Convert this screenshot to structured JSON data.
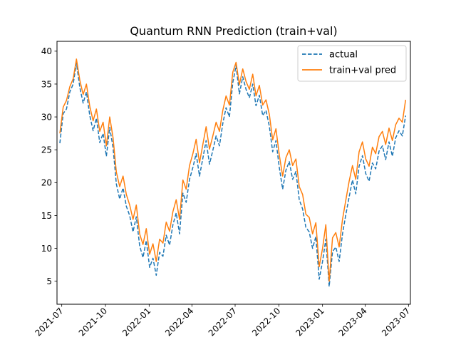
{
  "chart_data": {
    "type": "line",
    "title": "Quantum RNN Prediction (train+val)",
    "xlabel": "",
    "ylabel": "",
    "x_range": [
      "2021-06-21",
      "2023-07-05"
    ],
    "ylim": [
      1.5,
      41.5
    ],
    "x_ticks": [
      "2021-07",
      "2021-10",
      "2022-01",
      "2022-04",
      "2022-07",
      "2022-10",
      "2023-01",
      "2023-04",
      "2023-07"
    ],
    "y_ticks": [
      5,
      10,
      15,
      20,
      25,
      30,
      35,
      40
    ],
    "grid": false,
    "legend_position": "top-right",
    "x": [
      "2021-06-27",
      "2021-07-04",
      "2021-07-11",
      "2021-07-18",
      "2021-07-25",
      "2021-08-01",
      "2021-08-08",
      "2021-08-15",
      "2021-08-22",
      "2021-08-29",
      "2021-09-05",
      "2021-09-12",
      "2021-09-19",
      "2021-09-26",
      "2021-10-03",
      "2021-10-10",
      "2021-10-17",
      "2021-10-24",
      "2021-10-31",
      "2021-11-07",
      "2021-11-14",
      "2021-11-21",
      "2021-11-28",
      "2021-12-05",
      "2021-12-12",
      "2021-12-19",
      "2021-12-26",
      "2022-01-02",
      "2022-01-09",
      "2022-01-16",
      "2022-01-23",
      "2022-01-30",
      "2022-02-06",
      "2022-02-13",
      "2022-02-20",
      "2022-02-27",
      "2022-03-06",
      "2022-03-13",
      "2022-03-20",
      "2022-03-27",
      "2022-04-03",
      "2022-04-10",
      "2022-04-17",
      "2022-04-24",
      "2022-05-01",
      "2022-05-08",
      "2022-05-15",
      "2022-05-22",
      "2022-05-29",
      "2022-06-05",
      "2022-06-12",
      "2022-06-19",
      "2022-06-26",
      "2022-07-03",
      "2022-07-10",
      "2022-07-17",
      "2022-07-24",
      "2022-07-31",
      "2022-08-07",
      "2022-08-14",
      "2022-08-21",
      "2022-08-28",
      "2022-09-04",
      "2022-09-11",
      "2022-09-18",
      "2022-09-25",
      "2022-10-02",
      "2022-10-09",
      "2022-10-16",
      "2022-10-23",
      "2022-10-30",
      "2022-11-06",
      "2022-11-13",
      "2022-11-20",
      "2022-11-27",
      "2022-12-04",
      "2022-12-11",
      "2022-12-18",
      "2022-12-25",
      "2023-01-01",
      "2023-01-08",
      "2023-01-15",
      "2023-01-22",
      "2023-01-29",
      "2023-02-05",
      "2023-02-12",
      "2023-02-19",
      "2023-02-26",
      "2023-03-05",
      "2023-03-12",
      "2023-03-19",
      "2023-03-26",
      "2023-04-02",
      "2023-04-09",
      "2023-04-16",
      "2023-04-23",
      "2023-04-30",
      "2023-05-07",
      "2023-05-14",
      "2023-05-21",
      "2023-05-28",
      "2023-06-04",
      "2023-06-11",
      "2023-06-18",
      "2023-06-25"
    ],
    "series": [
      {
        "name": "actual",
        "color": "#1f77b4",
        "style": "dashed",
        "values": [
          26.0,
          30.5,
          31.2,
          33.8,
          35.0,
          38.2,
          34.5,
          32.1,
          33.8,
          30.2,
          27.9,
          29.8,
          26.1,
          27.5,
          24.0,
          28.4,
          25.3,
          19.8,
          17.5,
          19.2,
          16.4,
          15.0,
          12.5,
          14.8,
          10.4,
          8.6,
          11.2,
          7.1,
          8.5,
          5.9,
          9.4,
          8.8,
          12.0,
          10.5,
          13.6,
          15.4,
          12.2,
          18.4,
          17.0,
          20.5,
          22.3,
          24.4,
          21.0,
          23.7,
          26.4,
          22.8,
          24.9,
          27.1,
          25.6,
          29.0,
          31.4,
          30.0,
          35.2,
          37.8,
          33.5,
          36.1,
          34.2,
          32.9,
          35.0,
          31.7,
          33.3,
          30.2,
          31.0,
          28.6,
          24.7,
          26.4,
          22.3,
          19.0,
          21.9,
          23.2,
          20.5,
          21.7,
          17.4,
          16.0,
          13.2,
          12.5,
          10.0,
          11.8,
          5.3,
          8.0,
          11.4,
          4.2,
          9.5,
          10.2,
          8.0,
          12.2,
          15.1,
          17.8,
          20.4,
          18.3,
          22.5,
          24.1,
          21.4,
          20.2,
          23.0,
          22.1,
          24.8,
          25.6,
          23.5,
          26.2,
          24.0,
          26.8,
          27.9,
          27.1,
          30.2
        ]
      },
      {
        "name": "train+val pred",
        "color": "#ff7f0e",
        "style": "solid",
        "values": [
          27.5,
          31.5,
          32.5,
          34.6,
          35.8,
          38.8,
          35.6,
          33.4,
          35.0,
          31.6,
          29.4,
          31.2,
          27.8,
          29.2,
          25.6,
          30.0,
          26.8,
          21.6,
          19.4,
          21.0,
          18.2,
          16.6,
          14.4,
          16.6,
          12.2,
          10.6,
          13.0,
          9.1,
          10.7,
          8.0,
          11.4,
          10.8,
          14.0,
          12.6,
          15.6,
          17.4,
          14.4,
          20.4,
          19.0,
          22.6,
          24.4,
          26.6,
          23.0,
          25.8,
          28.5,
          25.1,
          27.1,
          29.2,
          27.8,
          31.0,
          33.2,
          31.8,
          36.8,
          38.3,
          34.9,
          37.3,
          35.4,
          34.2,
          36.5,
          33.2,
          34.8,
          31.8,
          32.6,
          30.4,
          26.5,
          28.2,
          24.2,
          21.0,
          23.8,
          25.0,
          22.6,
          23.6,
          19.4,
          18.2,
          15.2,
          14.7,
          12.2,
          13.9,
          7.2,
          10.0,
          13.6,
          5.0,
          11.6,
          12.4,
          10.2,
          14.4,
          17.3,
          20.2,
          22.6,
          20.5,
          24.7,
          26.2,
          23.6,
          22.5,
          25.4,
          24.4,
          27.0,
          27.8,
          25.8,
          28.3,
          26.4,
          28.8,
          29.8,
          29.2,
          32.6
        ]
      }
    ]
  }
}
